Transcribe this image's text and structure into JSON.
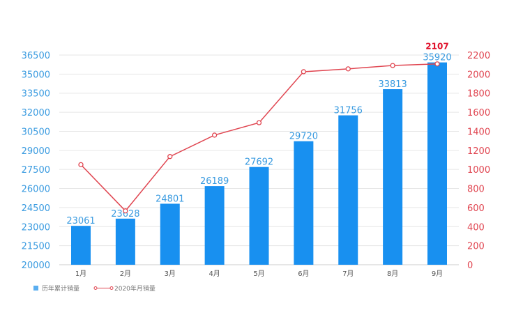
{
  "chart_data": {
    "type": "bar+line",
    "categories": [
      "1月",
      "2月",
      "3月",
      "4月",
      "5月",
      "6月",
      "7月",
      "8月",
      "9月"
    ],
    "series": [
      {
        "name": "历年累计销量",
        "type": "bar",
        "axis": "left",
        "color": "#1890f0",
        "values": [
          23061,
          23628,
          24801,
          26189,
          27692,
          29720,
          31756,
          33813,
          35920
        ]
      },
      {
        "name": "2020年月销量",
        "type": "line",
        "axis": "right",
        "color": "#e04550",
        "values": [
          1050,
          565,
          1135,
          1360,
          1490,
          2025,
          2055,
          2090,
          2107
        ],
        "annotated_label": "2107"
      }
    ],
    "left_axis": {
      "min": 20000,
      "max": 36500,
      "step": 1500,
      "ticks": [
        "20000",
        "21500",
        "23000",
        "24500",
        "26000",
        "27500",
        "29000",
        "30500",
        "32000",
        "33500",
        "35000",
        "36500"
      ],
      "color": "#3a9be0"
    },
    "right_axis": {
      "min": 0,
      "max": 2200,
      "step": 200,
      "ticks": [
        "0",
        "200",
        "400",
        "600",
        "800",
        "1000",
        "1200",
        "1400",
        "1600",
        "1800",
        "2000",
        "2200"
      ],
      "color": "#e04550"
    },
    "grid": true,
    "legend_position": "bottom-left"
  }
}
